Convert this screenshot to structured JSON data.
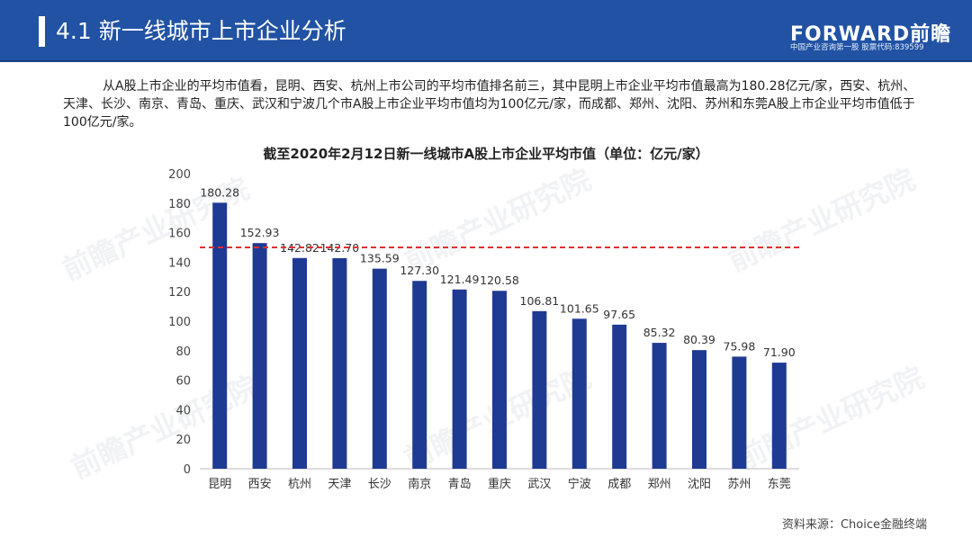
{
  "header": {
    "title": "4.1  新一线城市上市企业分析",
    "logo": "FORWARD前瞻",
    "logo_sub": "中国产业咨询第一股  股票代码:839599"
  },
  "paragraph": "从A股上市企业的平均市值看，昆明、西安、杭州上市公司的平均市值排名前三，其中昆明上市企业平均市值最高为180.28亿元/家，西安、杭州、天津、长沙、南京、青岛、重庆、武汉和宁波几个市A股上市企业平均市值均为100亿元/家，而成都、郑州、沈阳、苏州和东莞A股上市企业平均市值低于100亿元/家。",
  "watermark": "前瞻产业研究院",
  "source": "资料来源：Choice金融终端",
  "colors": {
    "header": "#2152a3",
    "bar": "#1f3a93",
    "ref_line": "#e03030"
  },
  "chart_data": {
    "type": "bar",
    "title": "截至2020年2月12日新一线城市A股上市企业平均市值（单位：亿元/家）",
    "categories": [
      "昆明",
      "西安",
      "杭州",
      "天津",
      "长沙",
      "南京",
      "青岛",
      "重庆",
      "武汉",
      "宁波",
      "成都",
      "郑州",
      "沈阳",
      "苏州",
      "东莞"
    ],
    "values": [
      180.28,
      152.93,
      142.82,
      142.7,
      135.59,
      127.3,
      121.49,
      120.58,
      106.81,
      101.65,
      97.65,
      85.32,
      80.39,
      75.98,
      71.9
    ],
    "labels": [
      "180.28",
      "152.93",
      "142.82",
      "142.70",
      "135.59",
      "127.30",
      "121.49",
      "120.58",
      "106.81",
      "101.65",
      "97.65",
      "85.32",
      "80.39",
      "75.98",
      "71.90"
    ],
    "yticks": [
      0,
      20,
      40,
      60,
      80,
      100,
      120,
      140,
      160,
      180,
      200
    ],
    "ylim": [
      0,
      200
    ],
    "reference_line": 150,
    "grid": false,
    "xlabel": "",
    "ylabel": ""
  }
}
